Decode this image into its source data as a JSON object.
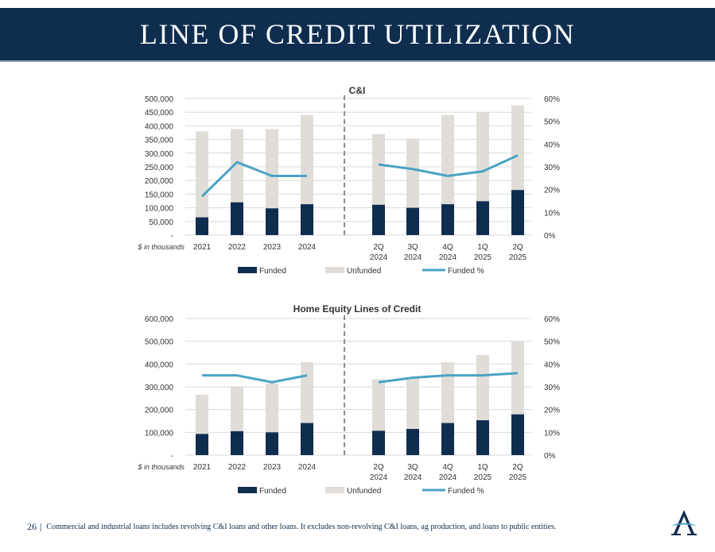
{
  "header": {
    "title": "LINE OF CREDIT UTILIZATION"
  },
  "colors": {
    "funded": "#0f2d4f",
    "unfunded": "#e0ddd8",
    "line": "#4aa3c4",
    "axis": "#d9d9d9",
    "text": "#333333"
  },
  "chart_data": [
    {
      "type": "bar",
      "stacked": true,
      "title": "C&I",
      "note": "$ in thousands",
      "categories": [
        "2021",
        "2022",
        "2023",
        "2024",
        "2Q 2024",
        "3Q 2024",
        "4Q 2024",
        "1Q 2025",
        "2Q 2025"
      ],
      "series": [
        {
          "name": "Funded",
          "values": [
            65000,
            120000,
            98000,
            113000,
            111000,
            100000,
            113000,
            124000,
            165000
          ]
        },
        {
          "name": "Unfunded",
          "values": [
            315000,
            268000,
            290000,
            327000,
            259000,
            253000,
            327000,
            326000,
            310000
          ]
        },
        {
          "name": "Funded %",
          "axis": "right",
          "values": [
            17,
            32,
            26,
            26,
            31,
            29,
            26,
            28,
            35
          ]
        }
      ],
      "ylim": [
        0,
        500000
      ],
      "yticks": [
        "-",
        "50,000",
        "100,000",
        "150,000",
        "200,000",
        "250,000",
        "300,000",
        "350,000",
        "400,000",
        "450,000",
        "500,000"
      ],
      "y2lim": [
        0,
        60
      ],
      "y2ticks": [
        "0%",
        "10%",
        "20%",
        "30%",
        "40%",
        "50%",
        "60%"
      ],
      "legend": [
        "Funded",
        "Unfunded",
        "Funded %"
      ]
    },
    {
      "type": "bar",
      "stacked": true,
      "title": "Home Equity Lines of Credit",
      "note": "$ in thousands",
      "categories": [
        "2021",
        "2022",
        "2023",
        "2024",
        "2Q 2024",
        "3Q 2024",
        "4Q 2024",
        "1Q 2025",
        "2Q 2025"
      ],
      "series": [
        {
          "name": "Funded",
          "values": [
            93000,
            105000,
            100000,
            141000,
            107000,
            115000,
            141000,
            153000,
            179000
          ]
        },
        {
          "name": "Unfunded",
          "values": [
            172000,
            195000,
            215000,
            267000,
            226000,
            222000,
            267000,
            287000,
            321000
          ]
        },
        {
          "name": "Funded %",
          "axis": "right",
          "values": [
            35,
            35,
            32,
            35,
            32,
            34,
            35,
            35,
            36
          ]
        }
      ],
      "ylim": [
        0,
        600000
      ],
      "yticks": [
        "-",
        "100,000",
        "200,000",
        "300,000",
        "400,000",
        "500,000",
        "600,000"
      ],
      "y2lim": [
        0,
        60
      ],
      "y2ticks": [
        "0%",
        "10%",
        "20%",
        "30%",
        "40%",
        "50%",
        "60%"
      ],
      "legend": [
        "Funded",
        "Unfunded",
        "Funded %"
      ]
    }
  ],
  "footer": {
    "page_number": "26",
    "note": "Commercial and industrial loans includes revolving C&I loans and other loans. It excludes non-revolving C&I loans, ag production, and loans to public entities."
  }
}
